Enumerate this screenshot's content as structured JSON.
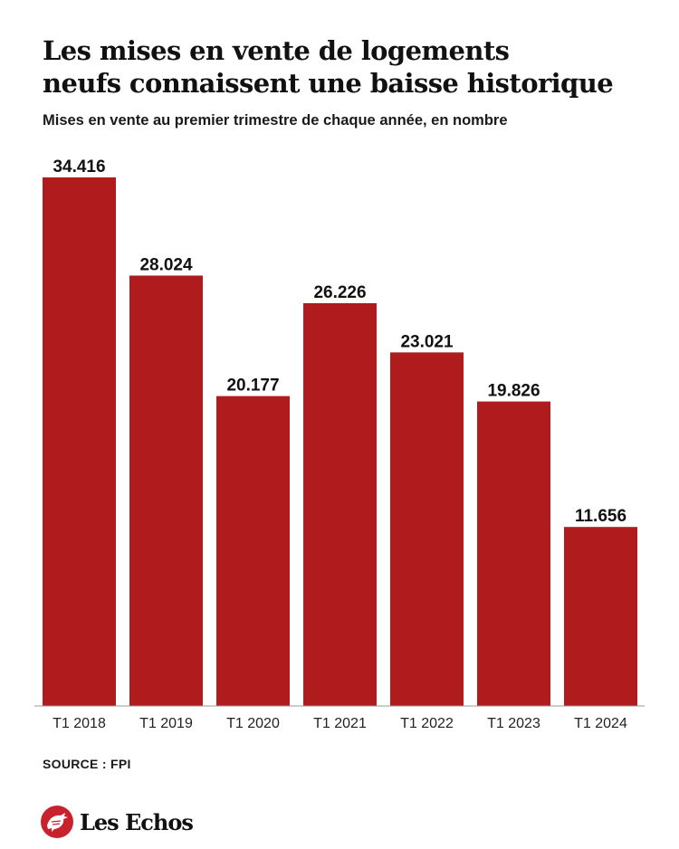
{
  "header": {
    "title_line1": "Les mises en vente de logements",
    "title_line2": "neufs connaissent une baisse historique",
    "subtitle": "Mises en vente au premier trimestre de chaque année, en nombre"
  },
  "chart_data": {
    "type": "bar",
    "title": "Les mises en vente de logements neufs connaissent une baisse historique",
    "subtitle": "Mises en vente au premier trimestre de chaque année, en nombre",
    "categories": [
      "T1 2018",
      "T1 2019",
      "T1 2020",
      "T1 2021",
      "T1 2022",
      "T1 2023",
      "T1 2024"
    ],
    "values": [
      34416,
      28024,
      20177,
      26226,
      23021,
      19826,
      11656
    ],
    "value_labels": [
      "34.416",
      "28.024",
      "20.177",
      "26.226",
      "23.021",
      "19.826",
      "11.656"
    ],
    "xlabel": "",
    "ylabel": "",
    "ylim": [
      0,
      34416
    ],
    "grid": false,
    "legend": "none",
    "bar_color": "#b01b1d"
  },
  "footer": {
    "source": "SOURCE : FPI",
    "brand": "Les Echos",
    "brand_color": "#c8232c",
    "brand_icon": "rooster-icon"
  }
}
